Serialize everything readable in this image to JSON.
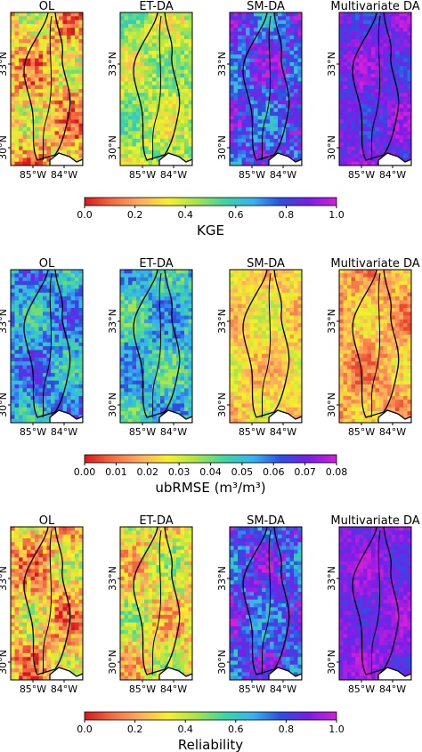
{
  "figure": {
    "panel_titles": [
      "OL",
      "ET-DA",
      "SM-DA",
      "Multivariate DA"
    ],
    "lat_ticks": [
      "33°N",
      "30°N"
    ],
    "lon_ticks": [
      "85°W",
      "84°W"
    ]
  },
  "chart_data": [
    {
      "type": "heatmap",
      "metric": "KGE",
      "colorbar_label": "KGE",
      "colorbar_ticks": [
        "0.0",
        "0.2",
        "0.4",
        "0.6",
        "0.8",
        "1.0"
      ],
      "range": [
        0.0,
        1.0
      ],
      "colormap": [
        "#d7191c",
        "#f46d43",
        "#fdae61",
        "#f7f02a",
        "#a6e44c",
        "#3dd6a0",
        "#36b4f0",
        "#2c4fe0",
        "#7a1de8",
        "#d21fd9"
      ],
      "panels": [
        {
          "name": "OL",
          "typical_range": [
            0.0,
            0.5
          ]
        },
        {
          "name": "ET-DA",
          "typical_range": [
            0.25,
            0.6
          ]
        },
        {
          "name": "SM-DA",
          "typical_range": [
            0.6,
            1.0
          ]
        },
        {
          "name": "Multivariate DA",
          "typical_range": [
            0.75,
            1.0
          ]
        }
      ]
    },
    {
      "type": "heatmap",
      "metric": "ubRMSE",
      "colorbar_label": "ubRMSE (m³/m³)",
      "colorbar_ticks": [
        "0.00",
        "0.01",
        "0.02",
        "0.03",
        "0.04",
        "0.05",
        "0.06",
        "0.07",
        "0.08"
      ],
      "range": [
        0.0,
        0.08
      ],
      "colormap": [
        "#d7191c",
        "#f46d43",
        "#fdae61",
        "#f7f02a",
        "#a6e44c",
        "#3dd6a0",
        "#36b4f0",
        "#2c4fe0",
        "#7a1de8",
        "#d21fd9"
      ],
      "panels": [
        {
          "name": "OL",
          "typical_range": [
            0.04,
            0.07
          ]
        },
        {
          "name": "ET-DA",
          "typical_range": [
            0.035,
            0.065
          ]
        },
        {
          "name": "SM-DA",
          "typical_range": [
            0.012,
            0.035
          ]
        },
        {
          "name": "Multivariate DA",
          "typical_range": [
            0.005,
            0.03
          ]
        }
      ]
    },
    {
      "type": "heatmap",
      "metric": "Reliability",
      "colorbar_label": "Reliability",
      "colorbar_ticks": [
        "0.0",
        "0.2",
        "0.4",
        "0.6",
        "0.8",
        "1.0"
      ],
      "range": [
        0.0,
        1.0
      ],
      "colormap": [
        "#d7191c",
        "#f46d43",
        "#fdae61",
        "#f7f02a",
        "#a6e44c",
        "#3dd6a0",
        "#36b4f0",
        "#2c4fe0",
        "#7a1de8",
        "#d21fd9"
      ],
      "panels": [
        {
          "name": "OL",
          "typical_range": [
            0.0,
            0.5
          ]
        },
        {
          "name": "ET-DA",
          "typical_range": [
            0.1,
            0.55
          ]
        },
        {
          "name": "SM-DA",
          "typical_range": [
            0.6,
            1.0
          ]
        },
        {
          "name": "Multivariate DA",
          "typical_range": [
            0.8,
            1.0
          ]
        }
      ]
    }
  ]
}
